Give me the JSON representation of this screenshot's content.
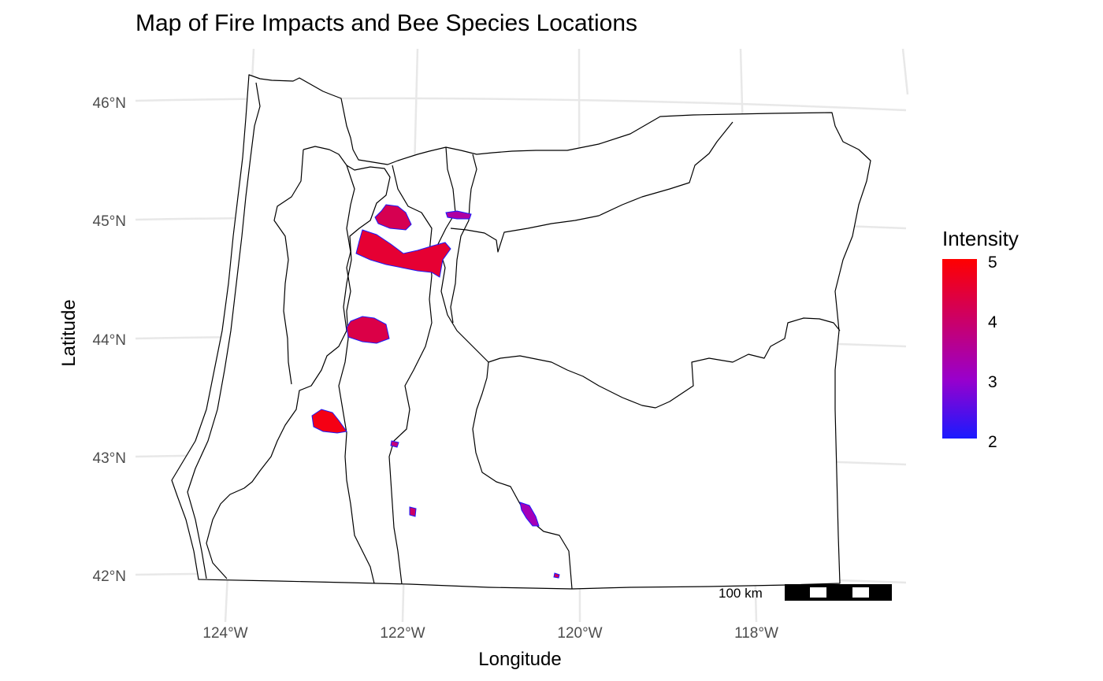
{
  "map": {
    "title": "Map of Fire Impacts and Bee Species Locations",
    "x_axis_title": "Longitude",
    "y_axis_title": "Latitude",
    "x_ticks": [
      "124°W",
      "122°W",
      "120°W",
      "118°W"
    ],
    "y_ticks": [
      "46°N",
      "45°N",
      "44°N",
      "43°N",
      "42°N"
    ],
    "legend": {
      "title": "Intensity",
      "ticks": [
        "5",
        "4",
        "3",
        "2"
      ],
      "range": [
        2,
        5
      ],
      "color_low": "#1a1aff",
      "color_mid": "#9900cc",
      "color_high": "#ff0000"
    },
    "scale_bar": {
      "label": "100 km"
    },
    "fire_patches": [
      {
        "name": "fire-patch-mt-hood-north",
        "intensity": 4.2
      },
      {
        "name": "fire-patch-santiam-complex",
        "intensity": 4.5
      },
      {
        "name": "fire-patch-warm-springs",
        "intensity": 3.4
      },
      {
        "name": "fire-patch-mckenzie",
        "intensity": 4.3
      },
      {
        "name": "fire-patch-umpqua",
        "intensity": 4.8
      },
      {
        "name": "fire-patch-crater-lake",
        "intensity": 3.8
      },
      {
        "name": "fire-patch-klamath",
        "intensity": 4.0
      },
      {
        "name": "fire-patch-lake-county",
        "intensity": 3.2
      },
      {
        "name": "fire-patch-south-border",
        "intensity": 4.1
      }
    ]
  }
}
